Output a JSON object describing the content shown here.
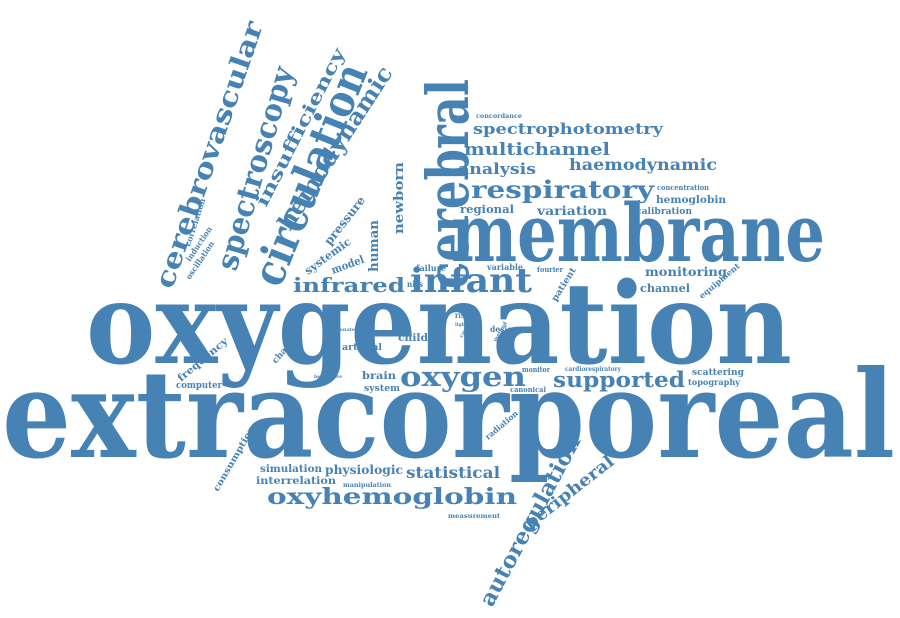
{
  "colors": {
    "word": "#4682b4",
    "background": "#ffffff"
  },
  "words": [
    "extracorporeal",
    "oxygenation",
    "membrane",
    "cerebral",
    "circulation",
    "cerebrovascular",
    "spectroscopy",
    "hemodynamic",
    "insufficiency",
    "infant",
    "respiratory",
    "infrared",
    "oxygen",
    "supported",
    "oxyhemoglobin",
    "autoregulation",
    "peripheral",
    "spectrophotometry",
    "multichannel",
    "haemodynamic",
    "analysis",
    "statistical",
    "physiologic",
    "newborn",
    "human",
    "pressure",
    "systemic",
    "model",
    "regional",
    "variation",
    "monitoring",
    "channel",
    "hemoglobin",
    "concentration",
    "calibration",
    "correlation",
    "induction",
    "oscillation",
    "frequency",
    "computer",
    "change",
    "consumption",
    "simulation",
    "interrelation",
    "brain",
    "system",
    "arterial",
    "child",
    "scattering",
    "topography",
    "cardiorespiratory",
    "canonical",
    "monitor",
    "radiation",
    "equipment",
    "patient",
    "fourier",
    "failure",
    "variable",
    "nirs",
    "risk",
    "design",
    "manipulation",
    "measurement",
    "concordance",
    "neonate",
    "method",
    "light",
    "cardiac",
    "hemisphere"
  ]
}
